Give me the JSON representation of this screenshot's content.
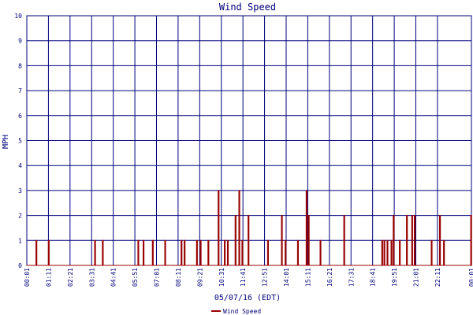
{
  "chart_data": {
    "type": "line",
    "title": "Wind Speed",
    "xlabel": "05/07/16 (EDT)",
    "ylabel": "MPH",
    "ylim": [
      0,
      10
    ],
    "x_range_minutes": [
      1,
      1441
    ],
    "x_ticks": [
      "00:01",
      "01:11",
      "02:21",
      "03:31",
      "04:41",
      "05:51",
      "07:01",
      "08:11",
      "09:21",
      "10:31",
      "11:41",
      "12:51",
      "14:01",
      "15:11",
      "16:21",
      "17:31",
      "18:41",
      "19:51",
      "21:01",
      "22:11",
      "00:01"
    ],
    "y_ticks": [
      "0",
      "1",
      "2",
      "3",
      "4",
      "5",
      "6",
      "7",
      "8",
      "9",
      "10"
    ],
    "grid": true,
    "colors": {
      "series": "#990000",
      "grid": "#00007a",
      "text": "#00007a"
    },
    "series": [
      {
        "name": "Wind Speed",
        "spikes": [
          {
            "t": 31,
            "v": 1
          },
          {
            "t": 71,
            "v": 1
          },
          {
            "t": 221,
            "v": 1
          },
          {
            "t": 246,
            "v": 1
          },
          {
            "t": 361,
            "v": 1
          },
          {
            "t": 378,
            "v": 1
          },
          {
            "t": 408,
            "v": 1
          },
          {
            "t": 448,
            "v": 1
          },
          {
            "t": 501,
            "v": 1
          },
          {
            "t": 511,
            "v": 1
          },
          {
            "t": 551,
            "v": 1
          },
          {
            "t": 563,
            "v": 1
          },
          {
            "t": 588,
            "v": 1
          },
          {
            "t": 621,
            "v": 3
          },
          {
            "t": 641,
            "v": 1
          },
          {
            "t": 651,
            "v": 1
          },
          {
            "t": 676,
            "v": 2
          },
          {
            "t": 688,
            "v": 3
          },
          {
            "t": 698,
            "v": 1
          },
          {
            "t": 718,
            "v": 2
          },
          {
            "t": 781,
            "v": 1
          },
          {
            "t": 826,
            "v": 2
          },
          {
            "t": 838,
            "v": 1
          },
          {
            "t": 878,
            "v": 1
          },
          {
            "t": 906,
            "v": 3
          },
          {
            "t": 913,
            "v": 2
          },
          {
            "t": 951,
            "v": 1
          },
          {
            "t": 1028,
            "v": 2
          },
          {
            "t": 1151,
            "v": 1
          },
          {
            "t": 1158,
            "v": 1
          },
          {
            "t": 1168,
            "v": 1
          },
          {
            "t": 1181,
            "v": 1
          },
          {
            "t": 1188,
            "v": 2
          },
          {
            "t": 1208,
            "v": 1
          },
          {
            "t": 1231,
            "v": 2
          },
          {
            "t": 1248,
            "v": 2
          },
          {
            "t": 1256,
            "v": 2
          },
          {
            "t": 1311,
            "v": 1
          },
          {
            "t": 1338,
            "v": 2
          },
          {
            "t": 1351,
            "v": 1
          },
          {
            "t": 1439,
            "v": 2
          }
        ]
      }
    ],
    "legend": {
      "placement": "bottom-center",
      "label": "Wind Speed"
    }
  }
}
